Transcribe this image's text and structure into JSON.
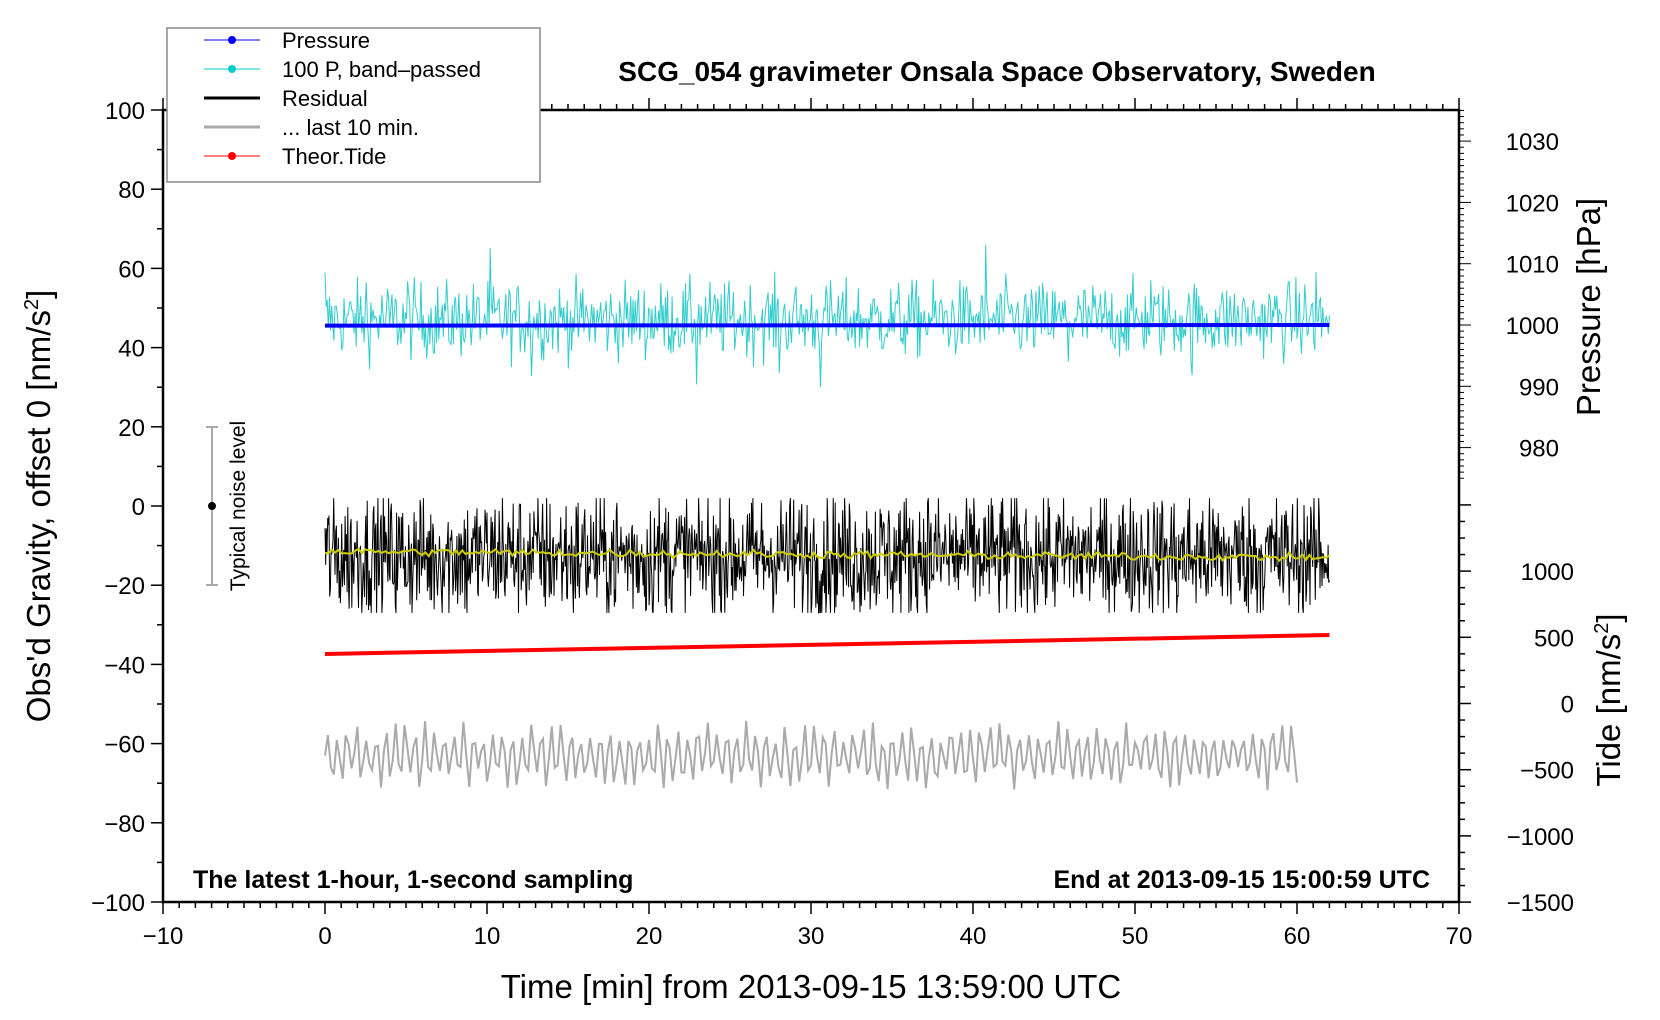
{
  "chart_data": {
    "type": "line",
    "title": "SCG_054 gravimeter Onsala Space Observatory, Sweden",
    "xlabel": "Time [min] from 2013-09-15 13:59:00 UTC",
    "ylabel": "Obs'd Gravity, offset 0 [nm/s",
    "ylabel_sup": "2",
    "ylabel_end": "]",
    "y2label": "Pressure [hPa]",
    "y3label": "Tide [nm/s",
    "y3label_sup": "2",
    "y3label_end": "]",
    "xlim": [
      -10,
      70
    ],
    "ylim": [
      -100,
      100
    ],
    "xticks": [
      "-10",
      "0",
      "10",
      "20",
      "30",
      "40",
      "50",
      "60",
      "70"
    ],
    "yticks": [
      "100",
      "80",
      "60",
      "40",
      "20",
      "0",
      "-20",
      "-40",
      "-60",
      "-80",
      "-100"
    ],
    "pressure_ticks": [
      "1030",
      "1020",
      "1010",
      "1000",
      "990",
      "980"
    ],
    "tide_ticks": [
      "1000",
      "500",
      "0",
      "-500",
      "-1000",
      "-1500"
    ],
    "annotation_left": "The latest 1-hour, 1-second sampling",
    "annotation_right": "End at 2013-09-15 15:00:59 UTC",
    "noise_label": "Typical noise level",
    "noise_bar": {
      "x": -7,
      "center": 0,
      "low": -20,
      "high": 20
    },
    "legend": {
      "placement": "top-left",
      "entries": [
        {
          "label": "Pressure",
          "color": "#0000ff",
          "marker": true
        },
        {
          "label": "100 P, band–passed",
          "color": "#00cccc",
          "marker": true
        },
        {
          "label": "Residual",
          "color": "#000000",
          "marker": false
        },
        {
          "label": "... last 10 min.",
          "color": "#aaaaaa",
          "marker": false
        },
        {
          "label": "Theor.Tide",
          "color": "#ff0000",
          "marker": true
        }
      ]
    },
    "series": [
      {
        "name": "Pressure",
        "axis": "pressure_hPa",
        "x_range": [
          0,
          62
        ],
        "start": 999.9,
        "end": 1000.0,
        "color": "#0000ff"
      },
      {
        "name": "100 P, band-passed",
        "axis": "gravity",
        "x_range": [
          0,
          62
        ],
        "mean": 47,
        "amplitude": 6,
        "min": 30,
        "max": 66,
        "color": "#33cccc"
      },
      {
        "name": "Residual",
        "axis": "gravity",
        "x_range": [
          0,
          62
        ],
        "mean": -12.5,
        "amplitude": 8,
        "min": -27,
        "max": 2,
        "color": "#000000"
      },
      {
        "name": "Residual smoothed",
        "axis": "gravity",
        "x_range": [
          0,
          62
        ],
        "start": -11.5,
        "end": -13,
        "color": "#cccc00"
      },
      {
        "name": "Theor.Tide",
        "axis": "tide",
        "x_range": [
          0,
          62
        ],
        "start": 374,
        "end": 517,
        "color": "#ff0000"
      },
      {
        "name": "... last 10 min.",
        "axis": "gravity",
        "x_range": [
          0,
          60
        ],
        "mean": -63,
        "amplitude": 7,
        "min": -73,
        "max": -51,
        "color": "#aaaaaa"
      }
    ]
  }
}
